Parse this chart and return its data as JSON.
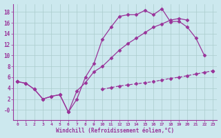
{
  "title": "",
  "xlabel": "Windchill (Refroidissement éolien,°C)",
  "bg_color": "#cce8ee",
  "grid_color": "#aacccc",
  "line_color": "#993399",
  "xlim": [
    -0.5,
    23.5
  ],
  "ylim": [
    -1.8,
    19.5
  ],
  "xticks": [
    0,
    1,
    2,
    3,
    4,
    5,
    6,
    7,
    8,
    9,
    10,
    11,
    12,
    13,
    14,
    15,
    16,
    17,
    18,
    19,
    20,
    21,
    22,
    23
  ],
  "yticks": [
    0,
    2,
    4,
    6,
    8,
    10,
    12,
    14,
    16,
    18
  ],
  "ytick_labels": [
    "-0",
    "2",
    "4",
    "6",
    "8",
    "10",
    "12",
    "14",
    "16",
    "18"
  ],
  "line1_x": [
    0,
    1,
    2,
    3,
    4,
    5,
    6,
    7,
    8,
    9,
    10,
    11,
    12,
    13,
    14,
    15,
    16,
    17,
    18,
    19,
    20,
    21,
    22
  ],
  "line1_y": [
    5.2,
    4.9,
    3.8,
    2.0,
    2.5,
    2.8,
    -0.4,
    2.0,
    6.0,
    8.5,
    13.0,
    15.2,
    17.2,
    17.5,
    17.5,
    18.3,
    17.5,
    18.6,
    16.2,
    16.3,
    15.2,
    13.2,
    10.0
  ],
  "line2_x": [
    0,
    1,
    2,
    3,
    4,
    5,
    6,
    7,
    8,
    9,
    10,
    11,
    12,
    13,
    14,
    15,
    16,
    17,
    18,
    19,
    20,
    21,
    22,
    23
  ],
  "line2_y": [
    5.2,
    4.9,
    3.8,
    2.0,
    2.5,
    2.8,
    -0.4,
    3.5,
    5.0,
    7.0,
    8.0,
    9.5,
    11.0,
    12.2,
    13.2,
    14.2,
    15.2,
    15.8,
    16.5,
    16.8,
    16.5,
    null,
    null,
    7.2
  ],
  "line3_x": [
    0,
    1,
    2,
    3,
    4,
    5,
    6,
    7,
    8,
    9,
    10,
    11,
    12,
    13,
    14,
    15,
    16,
    17,
    18,
    19,
    20,
    21,
    22,
    23
  ],
  "line3_y": [
    5.2,
    null,
    null,
    null,
    null,
    null,
    null,
    null,
    null,
    null,
    3.8,
    4.1,
    4.4,
    4.6,
    4.8,
    5.0,
    5.2,
    5.5,
    5.8,
    6.0,
    6.3,
    6.6,
    6.9,
    7.2
  ]
}
